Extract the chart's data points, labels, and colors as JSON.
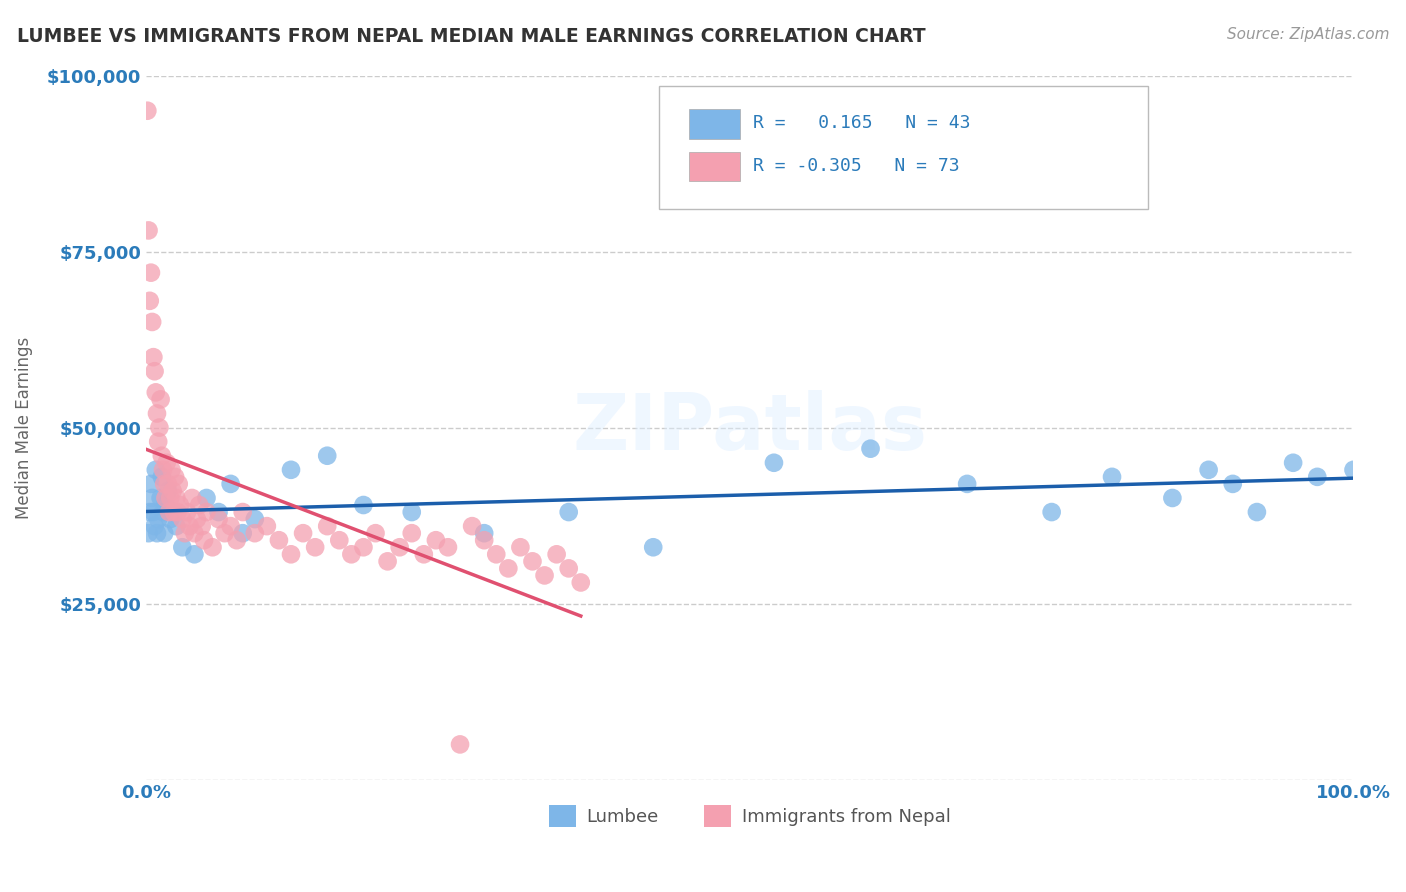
{
  "title": "LUMBEE VS IMMIGRANTS FROM NEPAL MEDIAN MALE EARNINGS CORRELATION CHART",
  "source": "Source: ZipAtlas.com",
  "ylabel": "Median Male Earnings",
  "yticks": [
    0,
    25000,
    50000,
    75000,
    100000
  ],
  "ytick_labels": [
    "",
    "$25,000",
    "$50,000",
    "$75,000",
    "$100,000"
  ],
  "legend_lumbee": "Lumbee",
  "legend_nepal": "Immigrants from Nepal",
  "R_lumbee": 0.165,
  "N_lumbee": 43,
  "R_nepal": -0.305,
  "N_nepal": 73,
  "color_lumbee": "#7EB6E8",
  "color_nepal": "#F4A0B0",
  "color_line_lumbee": "#1B5EAB",
  "color_line_nepal": "#E05070",
  "color_axis": "#2B7BBA",
  "color_grid": "#CCCCCC",
  "lumbee_x": [
    0.002,
    0.003,
    0.004,
    0.005,
    0.006,
    0.007,
    0.008,
    0.009,
    0.01,
    0.012,
    0.013,
    0.014,
    0.015,
    0.016,
    0.018,
    0.02,
    0.025,
    0.03,
    0.04,
    0.05,
    0.06,
    0.07,
    0.08,
    0.09,
    0.12,
    0.15,
    0.18,
    0.22,
    0.28,
    0.35,
    0.42,
    0.52,
    0.6,
    0.68,
    0.75,
    0.8,
    0.85,
    0.88,
    0.9,
    0.92,
    0.95,
    0.97,
    1.0
  ],
  "lumbee_y": [
    35000,
    38000,
    42000,
    40000,
    38000,
    36000,
    44000,
    35000,
    37000,
    40000,
    43000,
    38000,
    35000,
    39000,
    41000,
    37000,
    36000,
    33000,
    32000,
    40000,
    38000,
    42000,
    35000,
    37000,
    44000,
    46000,
    39000,
    38000,
    35000,
    38000,
    33000,
    45000,
    47000,
    42000,
    38000,
    43000,
    40000,
    44000,
    42000,
    38000,
    45000,
    43000,
    44000
  ],
  "nepal_x": [
    0.001,
    0.002,
    0.003,
    0.004,
    0.005,
    0.006,
    0.007,
    0.008,
    0.009,
    0.01,
    0.011,
    0.012,
    0.013,
    0.014,
    0.015,
    0.016,
    0.017,
    0.018,
    0.019,
    0.02,
    0.021,
    0.022,
    0.023,
    0.024,
    0.025,
    0.026,
    0.027,
    0.028,
    0.03,
    0.032,
    0.034,
    0.036,
    0.038,
    0.04,
    0.042,
    0.044,
    0.046,
    0.048,
    0.05,
    0.055,
    0.06,
    0.065,
    0.07,
    0.075,
    0.08,
    0.09,
    0.1,
    0.11,
    0.12,
    0.13,
    0.14,
    0.15,
    0.16,
    0.17,
    0.18,
    0.19,
    0.2,
    0.21,
    0.22,
    0.23,
    0.24,
    0.25,
    0.26,
    0.27,
    0.28,
    0.29,
    0.3,
    0.31,
    0.32,
    0.33,
    0.34,
    0.35,
    0.36
  ],
  "nepal_y": [
    95000,
    78000,
    68000,
    72000,
    65000,
    60000,
    58000,
    55000,
    52000,
    48000,
    50000,
    54000,
    46000,
    44000,
    42000,
    40000,
    45000,
    42000,
    38000,
    40000,
    44000,
    41000,
    38000,
    43000,
    40000,
    38000,
    42000,
    39000,
    37000,
    35000,
    38000,
    36000,
    40000,
    35000,
    37000,
    39000,
    36000,
    34000,
    38000,
    33000,
    37000,
    35000,
    36000,
    34000,
    38000,
    35000,
    36000,
    34000,
    32000,
    35000,
    33000,
    36000,
    34000,
    32000,
    33000,
    35000,
    31000,
    33000,
    35000,
    32000,
    34000,
    33000,
    5000,
    36000,
    34000,
    32000,
    30000,
    33000,
    31000,
    29000,
    32000,
    30000,
    28000
  ],
  "xlim": [
    0.0,
    1.0
  ],
  "ylim": [
    0,
    100000
  ],
  "figsize": [
    14.06,
    8.92
  ],
  "dpi": 100
}
